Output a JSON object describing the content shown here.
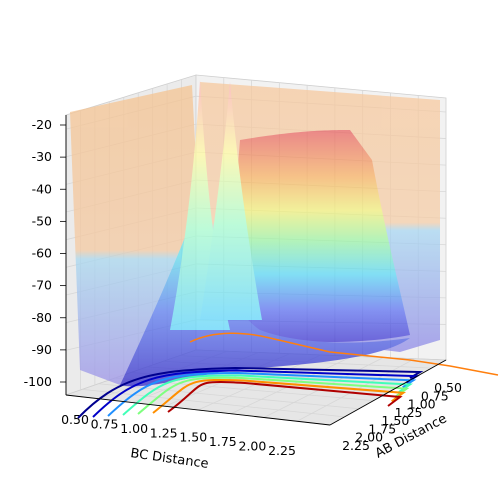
{
  "chart_data": {
    "type": "surface3d",
    "xlabel": "AB Distance",
    "ylabel": "BC Distance",
    "zlabel": "",
    "x_ticks": [
      "0.50",
      "0.75",
      "1.00",
      "1.25",
      "1.50",
      "1.75",
      "2.00",
      "2.25"
    ],
    "y_ticks": [
      "0.50",
      "0.75",
      "1.00",
      "1.25",
      "1.50",
      "1.75",
      "2.00",
      "2.25"
    ],
    "z_ticks": [
      "-20",
      "-30",
      "-40",
      "-50",
      "-60",
      "-70",
      "-80",
      "-90",
      "-100"
    ],
    "zlim": [
      -100,
      -20
    ],
    "xlim": [
      0.5,
      2.5
    ],
    "ylim": [
      0.5,
      2.5
    ],
    "colormap": "jet",
    "colormap_stops": [
      "#00007f",
      "#0000ff",
      "#007fff",
      "#00ffff",
      "#7fff7f",
      "#ffff00",
      "#ff7f00",
      "#ff0000",
      "#7f0000"
    ],
    "grid": true,
    "pane_color": "#f2f2f2",
    "contour_levels": [
      {
        "level": -95,
        "color": "#00008f"
      },
      {
        "level": -90,
        "color": "#0000c8"
      },
      {
        "level": -85,
        "color": "#1f8fff"
      },
      {
        "level": -80,
        "color": "#40ffb7"
      },
      {
        "level": -70,
        "color": "#7fff7f"
      },
      {
        "level": -60,
        "color": "#ff8f00"
      },
      {
        "level": -40,
        "color": "#b00000"
      }
    ],
    "edge_contour": {
      "color": "#ff7f0e"
    }
  }
}
